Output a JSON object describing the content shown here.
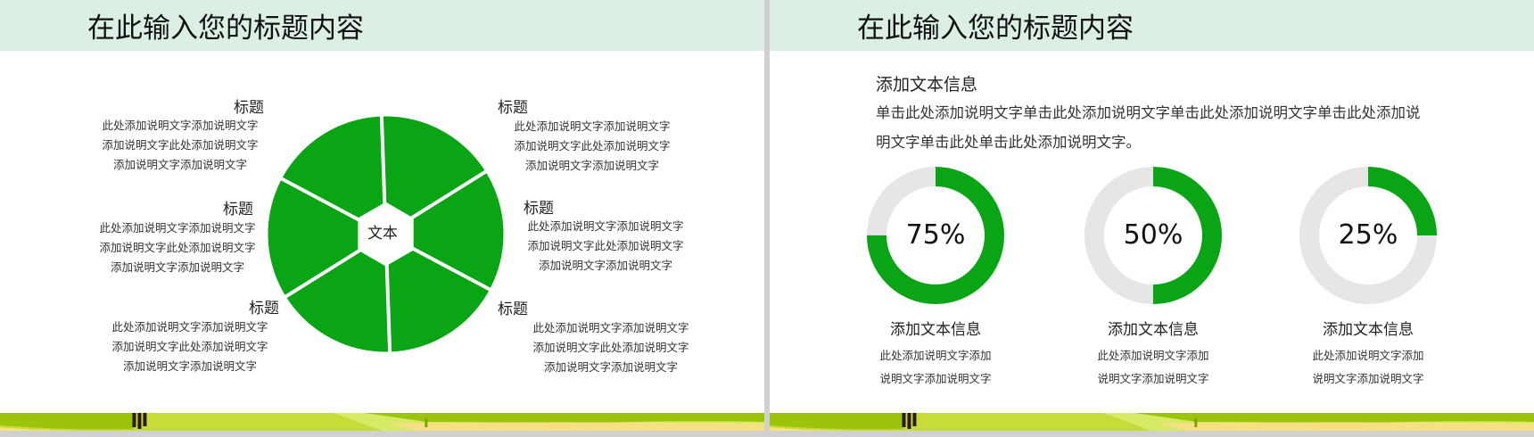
{
  "colors": {
    "accent": "#0aa514",
    "ring_track": "#e6e6e6",
    "header_band": "#dcefe4"
  },
  "slide1": {
    "title": "在此输入您的标题内容",
    "center_label": "文本",
    "blocks": [
      {
        "title": "标题",
        "lines": [
          "此处添加说明文字添加说明文字",
          "添加说明文字此处添加说明文字",
          "添加说明文字添加说明文字"
        ]
      },
      {
        "title": "标题",
        "lines": [
          "此处添加说明文字添加说明文字",
          "添加说明文字此处添加说明文字",
          "添加说明文字添加说明文字"
        ]
      },
      {
        "title": "标题",
        "lines": [
          "此处添加说明文字添加说明文字",
          "添加说明文字此处添加说明文字",
          "添加说明文字添加说明文字"
        ]
      },
      {
        "title": "标题",
        "lines": [
          "此处添加说明文字添加说明文字",
          "添加说明文字此处添加说明文字",
          "添加说明文字添加说明文字"
        ]
      },
      {
        "title": "标题",
        "lines": [
          "此处添加说明文字添加说明文字",
          "添加说明文字此处添加说明文字",
          "添加说明文字添加说明文字"
        ]
      },
      {
        "title": "标题",
        "lines": [
          "此处添加说明文字添加说明文字",
          "添加说明文字此处添加说明文字",
          "添加说明文字添加说明文字"
        ]
      }
    ]
  },
  "slide2": {
    "title": "在此输入您的标题内容",
    "heading": "添加文本信息",
    "paragraph": [
      "单击此处添加说明文字单击此处添加说明文字单击此处添加说明文字单击此处添加说",
      "明文字单击此处单击此处添加说明文字。"
    ],
    "rings": [
      {
        "percent": 75,
        "label": "75%",
        "title": "添加文本信息",
        "lines": [
          "此处添加说明文字添加",
          "说明文字添加说明文字"
        ]
      },
      {
        "percent": 50,
        "label": "50%",
        "title": "添加文本信息",
        "lines": [
          "此处添加说明文字添加",
          "说明文字添加说明文字"
        ]
      },
      {
        "percent": 25,
        "label": "25%",
        "title": "添加文本信息",
        "lines": [
          "此处添加说明文字添加",
          "说明文字添加说明文字"
        ]
      }
    ]
  }
}
